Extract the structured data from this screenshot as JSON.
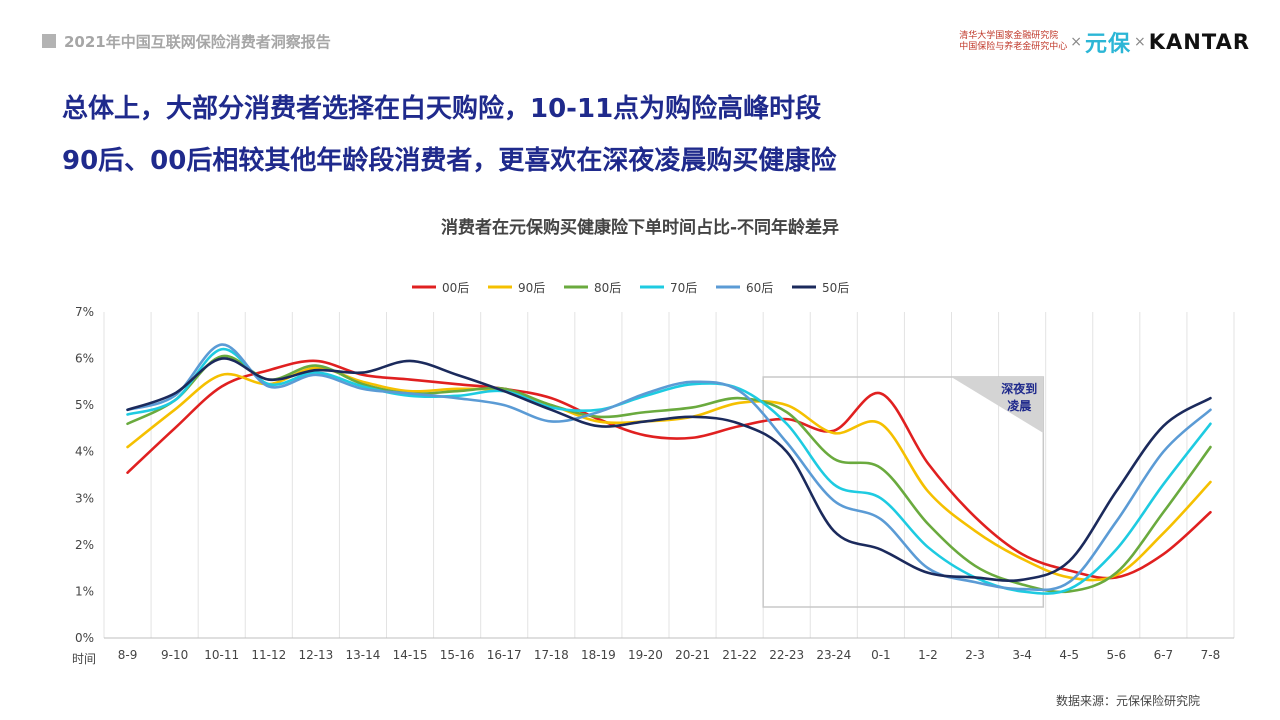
{
  "header": {
    "report_title": "2021年中国互联网保险消费者洞察报告",
    "logo_institute_line1": "清华大学国家金融研究院",
    "logo_institute_line2": "中国保险与养老金研究中心",
    "logo_cross": "×",
    "logo_yuanbao": "元保",
    "logo_kantar": "KANTAR"
  },
  "headline": {
    "line1": "总体上，大部分消费者选择在白天购险，10-11点为购险高峰时段",
    "line2": "90后、00后相较其他年龄段消费者，更喜欢在深夜凌晨购买健康险"
  },
  "source": "数据来源：元保保险研究院",
  "chart_data": {
    "type": "line",
    "title": "消费者在元保购买健康险下单时间占比-不同年龄差异",
    "xlabel": "时间",
    "ylabel": "",
    "ylim": [
      0,
      7
    ],
    "yticks": [
      "0%",
      "1%",
      "2%",
      "3%",
      "4%",
      "5%",
      "6%",
      "7%"
    ],
    "grid": "vertical",
    "legend_position": "top-center",
    "categories": [
      "8-9",
      "9-10",
      "10-11",
      "11-12",
      "12-13",
      "13-14",
      "14-15",
      "15-16",
      "16-17",
      "17-18",
      "18-19",
      "19-20",
      "20-21",
      "21-22",
      "22-23",
      "23-24",
      "0-1",
      "1-2",
      "2-3",
      "3-4",
      "4-5",
      "5-6",
      "6-7",
      "7-8"
    ],
    "series": [
      {
        "name": "00后",
        "color": "#e02020",
        "values": [
          3.55,
          4.5,
          5.4,
          5.75,
          5.95,
          5.65,
          5.55,
          5.45,
          5.35,
          5.15,
          4.7,
          4.35,
          4.3,
          4.55,
          4.7,
          4.45,
          5.25,
          3.75,
          2.6,
          1.8,
          1.45,
          1.3,
          1.8,
          2.7
        ]
      },
      {
        "name": "90后",
        "color": "#f5c000",
        "values": [
          4.1,
          4.9,
          5.65,
          5.45,
          5.8,
          5.5,
          5.3,
          5.35,
          5.3,
          5.0,
          4.65,
          4.65,
          4.75,
          5.05,
          5.0,
          4.4,
          4.6,
          3.15,
          2.3,
          1.7,
          1.3,
          1.35,
          2.25,
          3.35
        ]
      },
      {
        "name": "80后",
        "color": "#6aaa3e",
        "values": [
          4.6,
          5.1,
          6.05,
          5.55,
          5.85,
          5.45,
          5.25,
          5.3,
          5.35,
          5.0,
          4.75,
          4.85,
          4.95,
          5.15,
          4.85,
          3.85,
          3.65,
          2.45,
          1.55,
          1.15,
          1.0,
          1.4,
          2.7,
          4.1
        ]
      },
      {
        "name": "70后",
        "color": "#1ecbe1",
        "values": [
          4.8,
          5.1,
          6.2,
          5.45,
          5.7,
          5.4,
          5.2,
          5.2,
          5.3,
          4.95,
          4.9,
          5.2,
          5.45,
          5.35,
          4.6,
          3.3,
          3.0,
          1.95,
          1.3,
          1.0,
          1.05,
          1.9,
          3.3,
          4.6
        ]
      },
      {
        "name": "60后",
        "color": "#5b9bd5",
        "values": [
          4.9,
          5.2,
          6.3,
          5.4,
          5.65,
          5.35,
          5.25,
          5.15,
          5.0,
          4.65,
          4.85,
          5.25,
          5.5,
          5.3,
          4.2,
          2.95,
          2.55,
          1.5,
          1.2,
          1.05,
          1.2,
          2.5,
          4.0,
          4.9
        ]
      },
      {
        "name": "50后",
        "color": "#1b2a5c",
        "values": [
          4.9,
          5.25,
          6.0,
          5.55,
          5.75,
          5.7,
          5.95,
          5.65,
          5.3,
          4.9,
          4.55,
          4.65,
          4.75,
          4.6,
          4.0,
          2.3,
          1.9,
          1.4,
          1.3,
          1.25,
          1.65,
          3.15,
          4.55,
          5.15
        ]
      }
    ],
    "highlight": {
      "label_line1": "深夜到",
      "label_line2": "凌晨",
      "from_category": "22-23",
      "to_category": "3-4"
    }
  }
}
